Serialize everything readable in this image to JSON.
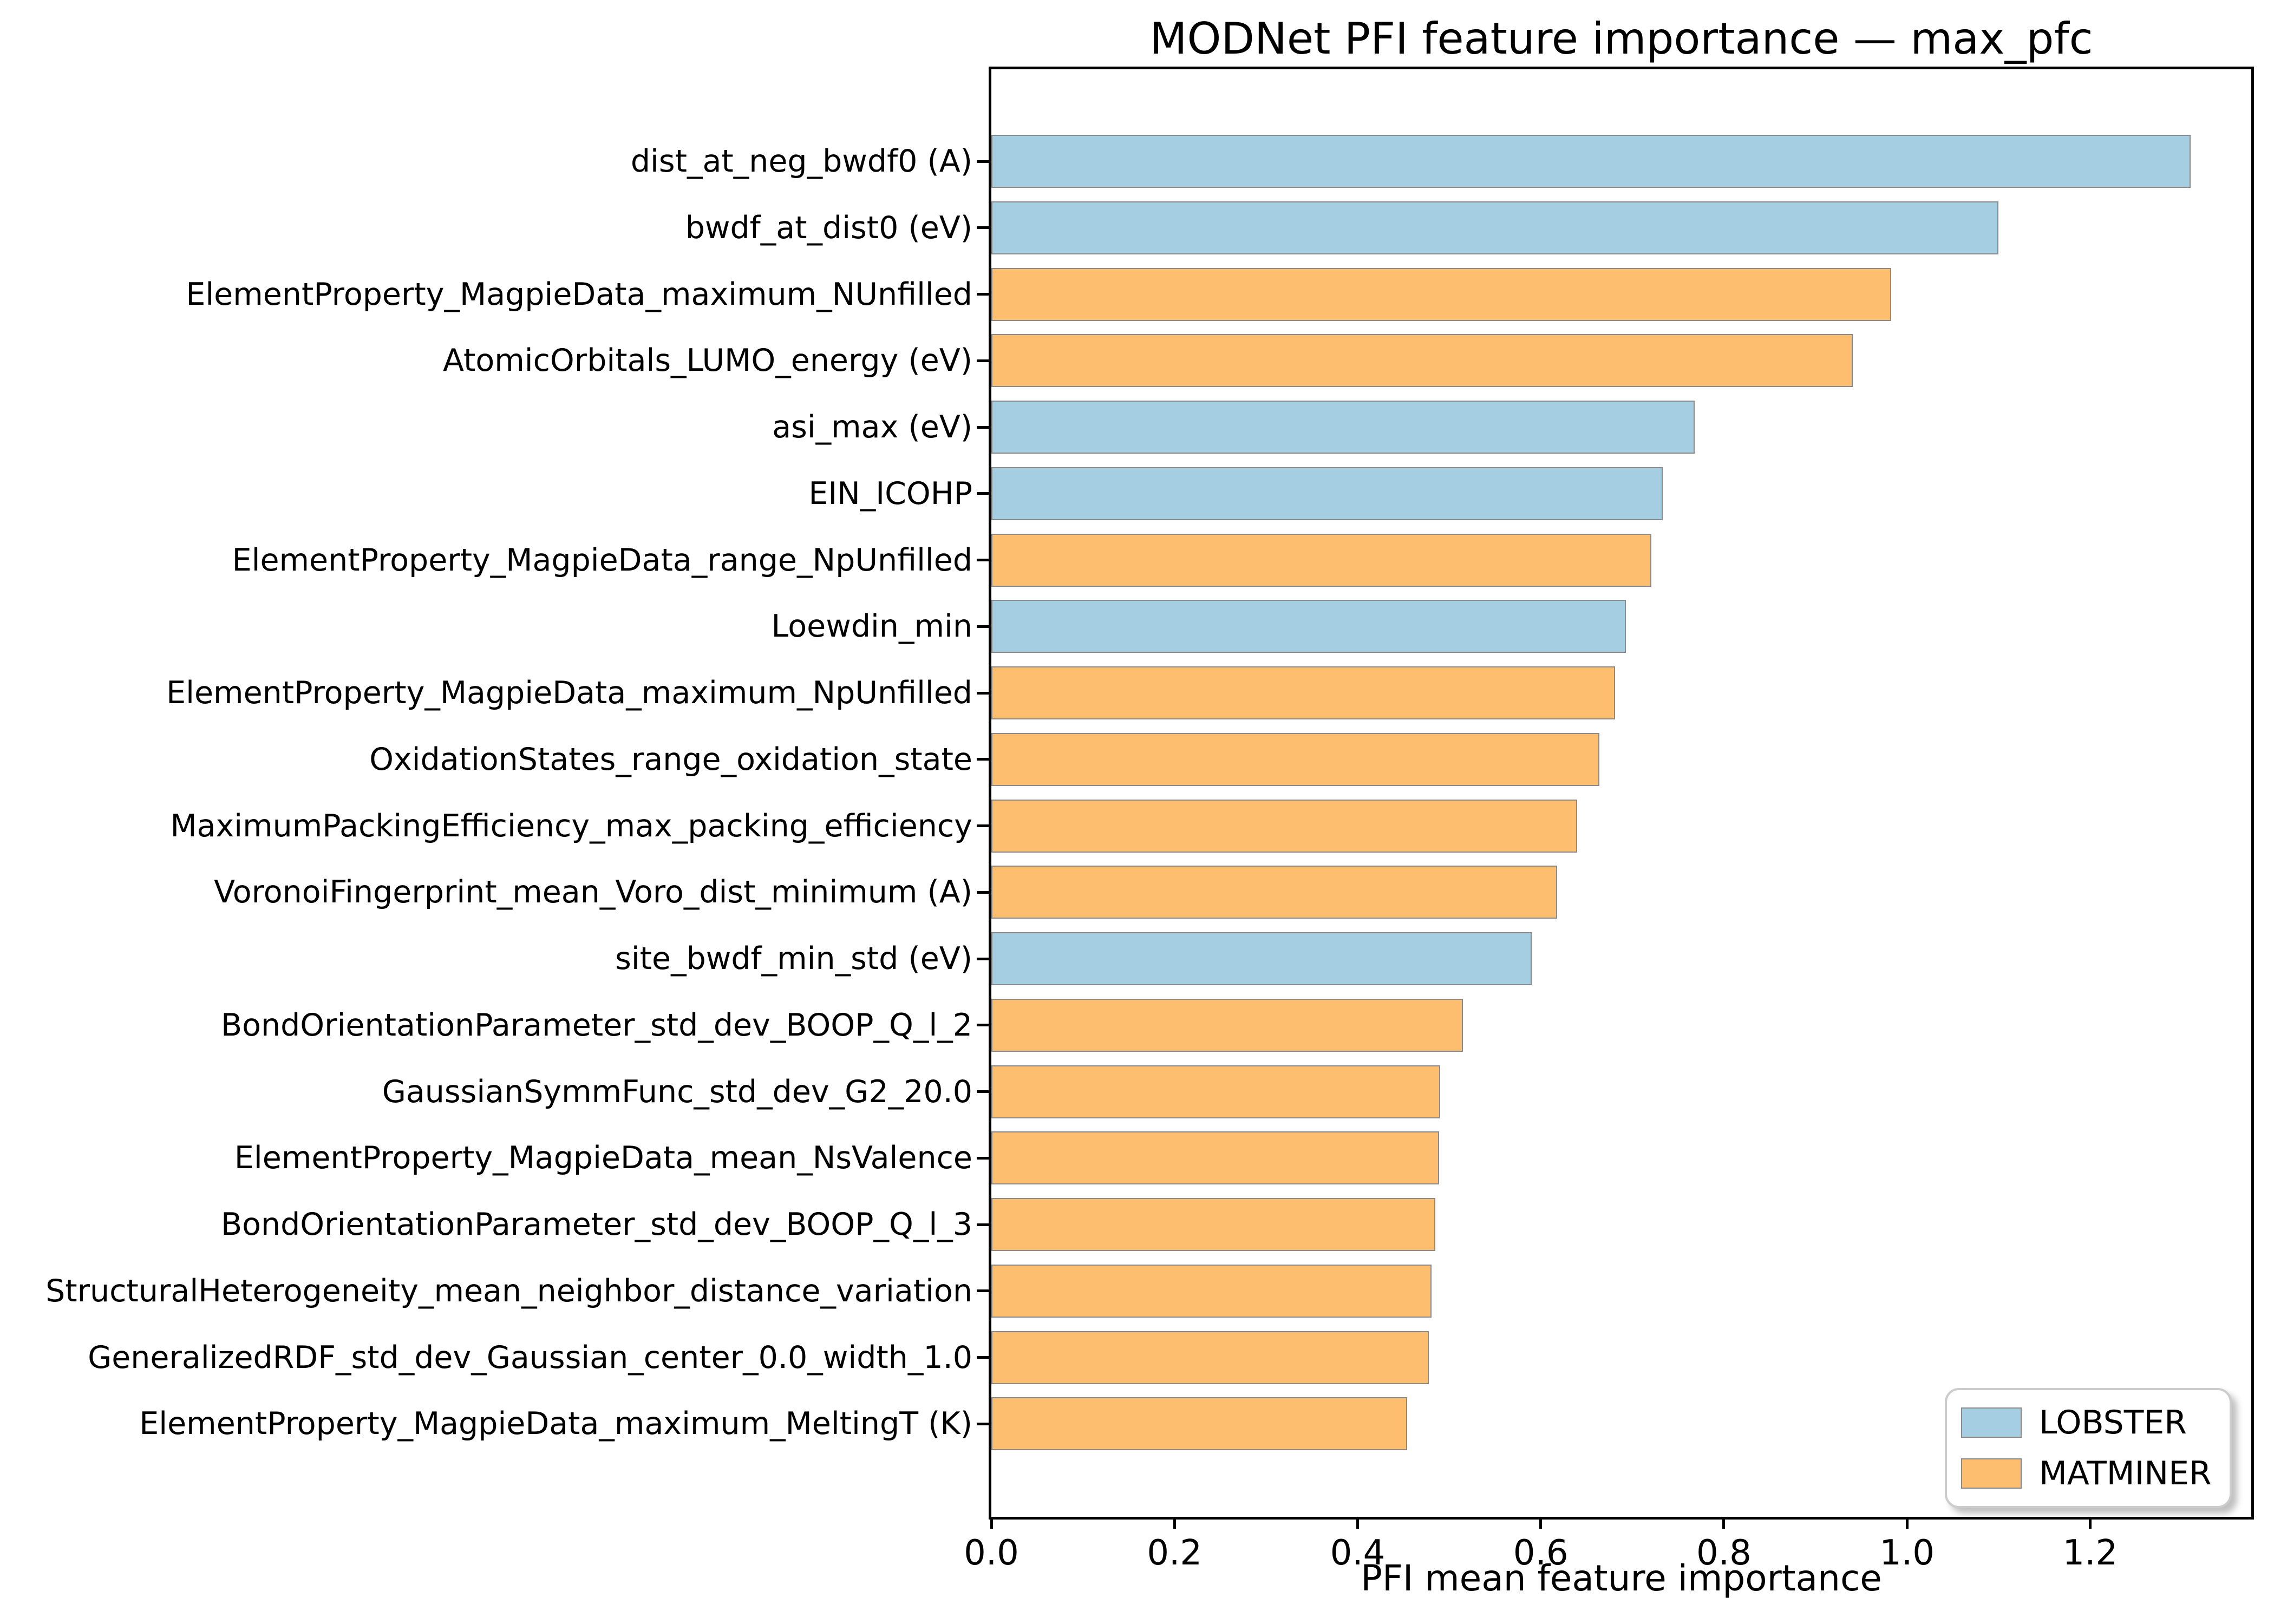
{
  "chart_data": {
    "type": "bar",
    "orientation": "horizontal",
    "title": "MODNet PFI feature importance — max_pfc",
    "xlabel": "PFI mean feature importance",
    "ylabel": "",
    "xlim": [
      0,
      1.376
    ],
    "xticks": [
      "0.0",
      "0.2",
      "0.4",
      "0.6",
      "0.8",
      "1.0",
      "1.2"
    ],
    "xtick_values": [
      0.0,
      0.2,
      0.4,
      0.6,
      0.8,
      1.0,
      1.2
    ],
    "grid": false,
    "bar_edge_color": "#8a8a8a",
    "legend_position": "lower right",
    "series_colors": {
      "LOBSTER": "#a6cee3",
      "MATMINER": "#fdbf6f"
    },
    "legend_entries": [
      {
        "label": "LOBSTER",
        "color": "#a6cee3"
      },
      {
        "label": "MATMINER",
        "color": "#fdbf6f"
      }
    ],
    "categories": [
      "dist_at_neg_bwdf0 (A)",
      "bwdf_at_dist0 (eV)",
      "ElementProperty_MagpieData_maximum_NUnfilled",
      "AtomicOrbitals_LUMO_energy (eV)",
      "asi_max (eV)",
      "EIN_ICOHP",
      "ElementProperty_MagpieData_range_NpUnfilled",
      "Loewdin_min",
      "ElementProperty_MagpieData_maximum_NpUnfilled",
      "OxidationStates_range_oxidation_state",
      "MaximumPackingEfficiency_max_packing_efficiency",
      "VoronoiFingerprint_mean_Voro_dist_minimum (A)",
      "site_bwdf_min_std (eV)",
      "BondOrientationParameter_std_dev_BOOP_Q_l_2",
      "GaussianSymmFunc_std_dev_G2_20.0",
      "ElementProperty_MagpieData_mean_NsValence",
      "BondOrientationParameter_std_dev_BOOP_Q_l_3",
      "StructuralHeterogeneity_mean_neighbor_distance_variation",
      "GeneralizedRDF_std_dev_Gaussian_center_0.0_width_1.0",
      "ElementProperty_MagpieData_maximum_MeltingT (K)"
    ],
    "values": [
      1.31,
      1.1,
      0.983,
      0.941,
      0.768,
      0.733,
      0.721,
      0.693,
      0.681,
      0.664,
      0.64,
      0.618,
      0.59,
      0.515,
      0.49,
      0.489,
      0.485,
      0.481,
      0.478,
      0.454
    ],
    "groups": [
      "LOBSTER",
      "LOBSTER",
      "MATMINER",
      "MATMINER",
      "LOBSTER",
      "LOBSTER",
      "MATMINER",
      "LOBSTER",
      "MATMINER",
      "MATMINER",
      "MATMINER",
      "MATMINER",
      "LOBSTER",
      "MATMINER",
      "MATMINER",
      "MATMINER",
      "MATMINER",
      "MATMINER",
      "MATMINER",
      "MATMINER"
    ]
  }
}
